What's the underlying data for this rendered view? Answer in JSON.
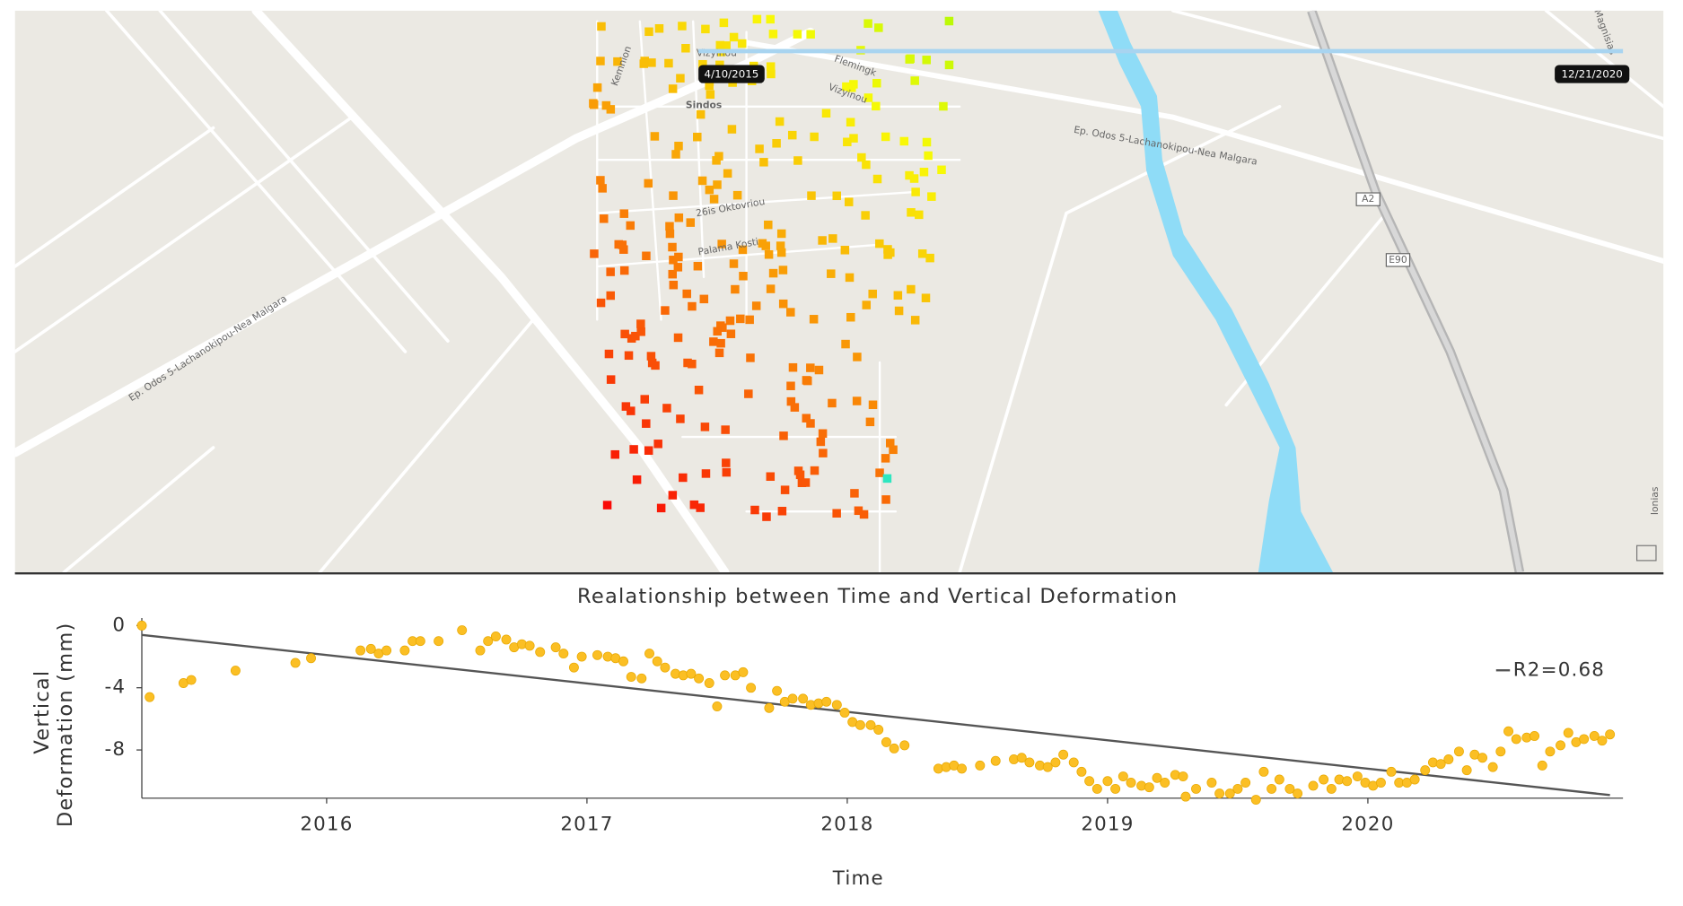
{
  "map": {
    "labels": [
      "Sindos",
      "Kemnion",
      "Vizyinou",
      "Flemingk",
      "Vizyinou",
      "26is Oktovriou",
      "Palama Kosti",
      "Ep. Odos 5-Lachanokipou-Nea Malgara",
      "Ep. Odos 5-Lachanokipou-Nea Malgara",
      "A2",
      "E90",
      "Magnisias",
      "Ionias"
    ],
    "slider": {
      "start": "4/10/2015",
      "end": "12/21/2020"
    }
  },
  "chart_data": {
    "type": "scatter",
    "title": "Realationship between Time and Vertical Deformation",
    "xlabel": "Time",
    "ylabel": [
      "Vertical",
      "Deformation (mm)"
    ],
    "xlim": [
      2015.29,
      2020.98
    ],
    "xticks": [
      2016,
      2017,
      2018,
      2019,
      2020
    ],
    "ylim": [
      -11.1,
      0
    ],
    "yticks": [
      0,
      -4,
      -8
    ],
    "grid": false,
    "series": [
      {
        "color": "#fbbf24",
        "x": [
          2015.29,
          2015.32,
          2015.45,
          2015.48,
          2015.65,
          2015.88,
          2015.94,
          2016.13,
          2016.17,
          2016.2,
          2016.23,
          2016.3,
          2016.33,
          2016.36,
          2016.43,
          2016.52,
          2016.59,
          2016.62,
          2016.65,
          2016.69,
          2016.72,
          2016.75,
          2016.78,
          2016.82,
          2016.88,
          2016.91,
          2016.95,
          2016.98,
          2017.04,
          2017.08,
          2017.11,
          2017.14,
          2017.17,
          2017.21,
          2017.24,
          2017.27,
          2017.3,
          2017.34,
          2017.37,
          2017.4,
          2017.43,
          2017.47,
          2017.5,
          2017.53,
          2017.57,
          2017.6,
          2017.63,
          2017.7,
          2017.73,
          2017.76,
          2017.79,
          2017.83,
          2017.86,
          2017.89,
          2017.92,
          2017.96,
          2017.99,
          2018.02,
          2018.05,
          2018.09,
          2018.12,
          2018.15,
          2018.18,
          2018.22,
          2018.35,
          2018.38,
          2018.41,
          2018.44,
          2018.51,
          2018.57,
          2018.64,
          2018.67,
          2018.7,
          2018.74,
          2018.77,
          2018.8,
          2018.83,
          2018.87,
          2018.9,
          2018.93,
          2018.96,
          2019.0,
          2019.03,
          2019.06,
          2019.09,
          2019.13,
          2019.16,
          2019.19,
          2019.22,
          2019.26,
          2019.29,
          2019.3,
          2019.34,
          2019.4,
          2019.43,
          2019.47,
          2019.5,
          2019.53,
          2019.57,
          2019.6,
          2019.63,
          2019.66,
          2019.7,
          2019.73,
          2019.79,
          2019.83,
          2019.86,
          2019.89,
          2019.92,
          2019.96,
          2019.99,
          2020.02,
          2020.05,
          2020.09,
          2020.12,
          2020.15,
          2020.18,
          2020.22,
          2020.25,
          2020.28,
          2020.31,
          2020.35,
          2020.38,
          2020.41,
          2020.44,
          2020.48,
          2020.51,
          2020.54,
          2020.57,
          2020.61,
          2020.64,
          2020.67,
          2020.7,
          2020.74,
          2020.77,
          2020.8,
          2020.83,
          2020.87,
          2020.9,
          2020.93
        ],
        "values": [
          0,
          -4.6,
          -3.7,
          -3.5,
          -2.9,
          -2.4,
          -2.1,
          -1.6,
          -1.5,
          -1.8,
          -1.6,
          -1.6,
          -1.0,
          -1.0,
          -1.0,
          -0.3,
          -1.6,
          -1.0,
          -0.7,
          -0.9,
          -1.4,
          -1.2,
          -1.3,
          -1.7,
          -1.4,
          -1.8,
          -2.7,
          -2.0,
          -1.9,
          -2.0,
          -2.1,
          -2.3,
          -3.3,
          -3.4,
          -1.8,
          -2.3,
          -2.7,
          -3.1,
          -3.2,
          -3.1,
          -3.4,
          -3.7,
          -5.2,
          -3.2,
          -3.2,
          -3.0,
          -4.0,
          -5.3,
          -4.2,
          -4.9,
          -4.7,
          -4.7,
          -5.1,
          -5.0,
          -4.9,
          -5.1,
          -5.6,
          -6.2,
          -6.4,
          -6.4,
          -6.7,
          -7.5,
          -7.9,
          -7.7,
          -9.2,
          -9.1,
          -9.0,
          -9.2,
          -9.0,
          -8.7,
          -8.6,
          -8.5,
          -8.8,
          -9.0,
          -9.1,
          -8.8,
          -8.3,
          -8.8,
          -9.4,
          -10.0,
          -10.5,
          -10.0,
          -10.5,
          -9.7,
          -10.1,
          -10.3,
          -10.4,
          -9.8,
          -10.1,
          -9.6,
          -9.7,
          -11.0,
          -10.5,
          -10.1,
          -10.8,
          -10.8,
          -10.5,
          -10.1,
          -11.2,
          -9.4,
          -10.5,
          -9.9,
          -10.5,
          -10.8,
          -10.3,
          -9.9,
          -10.5,
          -9.9,
          -10.0,
          -9.7,
          -10.1,
          -10.3,
          -10.1,
          -9.4,
          -10.1,
          -10.1,
          -9.9,
          -9.3,
          -8.8,
          -8.9,
          -8.6,
          -8.1,
          -9.3,
          -8.3,
          -8.5,
          -9.1,
          -8.1,
          -6.8,
          -7.3,
          -7.2,
          -7.1,
          -9.0,
          -8.1,
          -7.7,
          -6.9,
          -7.5,
          -7.3,
          -7.1,
          -7.4,
          -7.0
        ]
      }
    ],
    "trendline": {
      "name": "R2=0.68",
      "color": "#555555",
      "x": [
        2015.29,
        2020.93
      ],
      "values": [
        -0.6,
        -10.9
      ]
    }
  }
}
